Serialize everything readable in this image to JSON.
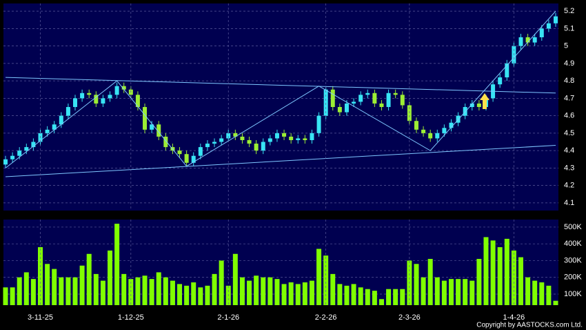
{
  "chart_data": [
    {
      "type": "candlestick",
      "up_color": "#38e4f4",
      "down_color": "#9cee34",
      "grid": true,
      "ylim": [
        4.056,
        5.244
      ],
      "yticks": [
        4.1,
        4.2,
        4.3,
        4.4,
        4.5,
        4.6,
        4.7,
        4.8,
        4.9,
        5,
        5.1,
        5.2
      ],
      "open": [
        4.32,
        4.35,
        4.37,
        4.4,
        4.42,
        4.45,
        4.5,
        4.52,
        4.55,
        4.6,
        4.65,
        4.7,
        4.73,
        4.72,
        4.67,
        4.7,
        4.72,
        4.77,
        4.75,
        4.72,
        4.65,
        4.52,
        4.55,
        4.48,
        4.42,
        4.4,
        4.38,
        4.33,
        4.37,
        4.42,
        4.44,
        4.45,
        4.47,
        4.5,
        4.48,
        4.46,
        4.44,
        4.4,
        4.45,
        4.47,
        4.5,
        4.48,
        4.46,
        4.47,
        4.46,
        4.5,
        4.6,
        4.75,
        4.65,
        4.62,
        4.67,
        4.68,
        4.72,
        4.73,
        4.67,
        4.65,
        4.73,
        4.72,
        4.66,
        4.57,
        4.52,
        4.5,
        4.47,
        4.5,
        4.53,
        4.56,
        4.6,
        4.65,
        4.67,
        4.65,
        4.7,
        4.78,
        4.82,
        4.9,
        5.0,
        5.05,
        5.02,
        5.05,
        5.1,
        5.13
      ],
      "high": [
        4.37,
        4.39,
        4.42,
        4.44,
        4.47,
        4.52,
        4.54,
        4.57,
        4.62,
        4.67,
        4.72,
        4.75,
        4.75,
        4.74,
        4.72,
        4.74,
        4.79,
        4.79,
        4.77,
        4.74,
        4.67,
        4.57,
        4.57,
        4.5,
        4.44,
        4.42,
        4.4,
        4.39,
        4.44,
        4.46,
        4.47,
        4.49,
        4.52,
        4.52,
        4.5,
        4.48,
        4.46,
        4.47,
        4.49,
        4.52,
        4.52,
        4.5,
        4.49,
        4.49,
        4.52,
        4.62,
        4.77,
        4.77,
        4.67,
        4.69,
        4.7,
        4.74,
        4.75,
        4.75,
        4.69,
        4.75,
        4.75,
        4.74,
        4.68,
        4.59,
        4.54,
        4.52,
        4.52,
        4.55,
        4.58,
        4.62,
        4.67,
        4.69,
        4.69,
        4.72,
        4.8,
        4.84,
        4.92,
        5.02,
        5.07,
        5.07,
        5.07,
        5.12,
        5.15,
        5.19
      ],
      "low": [
        4.3,
        4.33,
        4.35,
        4.38,
        4.4,
        4.43,
        4.48,
        4.5,
        4.53,
        4.58,
        4.63,
        4.68,
        4.7,
        4.65,
        4.65,
        4.68,
        4.7,
        4.73,
        4.7,
        4.63,
        4.5,
        4.5,
        4.46,
        4.4,
        4.38,
        4.36,
        4.31,
        4.31,
        4.35,
        4.4,
        4.42,
        4.43,
        4.45,
        4.46,
        4.44,
        4.42,
        4.38,
        4.38,
        4.43,
        4.45,
        4.46,
        4.44,
        4.44,
        4.44,
        4.44,
        4.48,
        4.58,
        4.63,
        4.6,
        4.6,
        4.65,
        4.66,
        4.7,
        4.65,
        4.63,
        4.63,
        4.7,
        4.64,
        4.55,
        4.5,
        4.48,
        4.45,
        4.45,
        4.48,
        4.51,
        4.54,
        4.58,
        4.63,
        4.63,
        4.63,
        4.68,
        4.76,
        4.8,
        4.88,
        4.98,
        5.0,
        5.0,
        5.03,
        5.08,
        5.11
      ],
      "close": [
        4.35,
        4.37,
        4.4,
        4.42,
        4.45,
        4.5,
        4.52,
        4.55,
        4.6,
        4.65,
        4.7,
        4.73,
        4.72,
        4.67,
        4.7,
        4.72,
        4.77,
        4.75,
        4.72,
        4.65,
        4.52,
        4.55,
        4.48,
        4.42,
        4.4,
        4.38,
        4.33,
        4.37,
        4.42,
        4.44,
        4.45,
        4.47,
        4.5,
        4.48,
        4.46,
        4.44,
        4.4,
        4.45,
        4.47,
        4.5,
        4.48,
        4.46,
        4.47,
        4.46,
        4.5,
        4.6,
        4.75,
        4.65,
        4.62,
        4.67,
        4.68,
        4.72,
        4.73,
        4.67,
        4.65,
        4.73,
        4.72,
        4.66,
        4.57,
        4.52,
        4.5,
        4.47,
        4.5,
        4.53,
        4.56,
        4.6,
        4.65,
        4.67,
        4.65,
        4.7,
        4.78,
        4.82,
        4.9,
        5.0,
        5.05,
        5.02,
        5.05,
        5.1,
        5.13,
        5.17
      ],
      "trendlines": [
        {
          "color": "#7fc8ff",
          "points": [
            [
              0,
              4.82
            ],
            [
              79,
              4.73
            ]
          ]
        },
        {
          "color": "#7fc8ff",
          "points": [
            [
              0,
              4.25
            ],
            [
              79,
              4.43
            ]
          ]
        },
        {
          "color": "#7fc8ff",
          "points": [
            [
              0,
              4.3
            ],
            [
              16,
              4.8
            ],
            [
              26,
              4.31
            ],
            [
              45,
              4.77
            ],
            [
              61,
              4.4
            ],
            [
              79,
              5.2
            ]
          ]
        }
      ]
    },
    {
      "type": "bar",
      "color": "#80ff00",
      "grid": true,
      "ylim": [
        34000,
        545000
      ],
      "yticks": [
        {
          "value": 100000,
          "label": "100K"
        },
        {
          "value": 200000,
          "label": "200K"
        },
        {
          "value": 300000,
          "label": "300K"
        },
        {
          "value": 400000,
          "label": "400K"
        },
        {
          "value": 500000,
          "label": "500K"
        }
      ],
      "categories": [
        null,
        null,
        null,
        null,
        null,
        "3-11-25",
        null,
        null,
        null,
        null,
        null,
        null,
        null,
        null,
        null,
        null,
        null,
        null,
        "1-12-25",
        null,
        null,
        null,
        null,
        null,
        null,
        null,
        null,
        null,
        null,
        null,
        null,
        null,
        "2-1-26",
        null,
        null,
        null,
        null,
        null,
        null,
        null,
        null,
        null,
        null,
        null,
        null,
        null,
        "2-2-26",
        null,
        null,
        null,
        null,
        null,
        null,
        null,
        null,
        null,
        null,
        null,
        "2-3-26",
        null,
        null,
        null,
        null,
        null,
        null,
        null,
        null,
        null,
        null,
        null,
        null,
        null,
        null,
        "1-4-26",
        null,
        null,
        null,
        null,
        null,
        null
      ],
      "values": [
        140000,
        140000,
        200000,
        230000,
        190000,
        380000,
        280000,
        250000,
        200000,
        200000,
        200000,
        270000,
        340000,
        220000,
        180000,
        360000,
        520000,
        220000,
        190000,
        200000,
        210000,
        190000,
        230000,
        200000,
        180000,
        160000,
        150000,
        170000,
        140000,
        150000,
        220000,
        300000,
        150000,
        340000,
        200000,
        180000,
        210000,
        200000,
        200000,
        190000,
        160000,
        170000,
        160000,
        170000,
        180000,
        370000,
        330000,
        220000,
        160000,
        150000,
        160000,
        140000,
        130000,
        120000,
        70000,
        130000,
        130000,
        130000,
        300000,
        280000,
        200000,
        310000,
        200000,
        180000,
        190000,
        190000,
        190000,
        180000,
        310000,
        440000,
        420000,
        380000,
        430000,
        360000,
        320000,
        200000,
        180000,
        170000,
        150000,
        60000
      ]
    }
  ],
  "footer": "Copyright by AASTOCKS.com Ltd."
}
